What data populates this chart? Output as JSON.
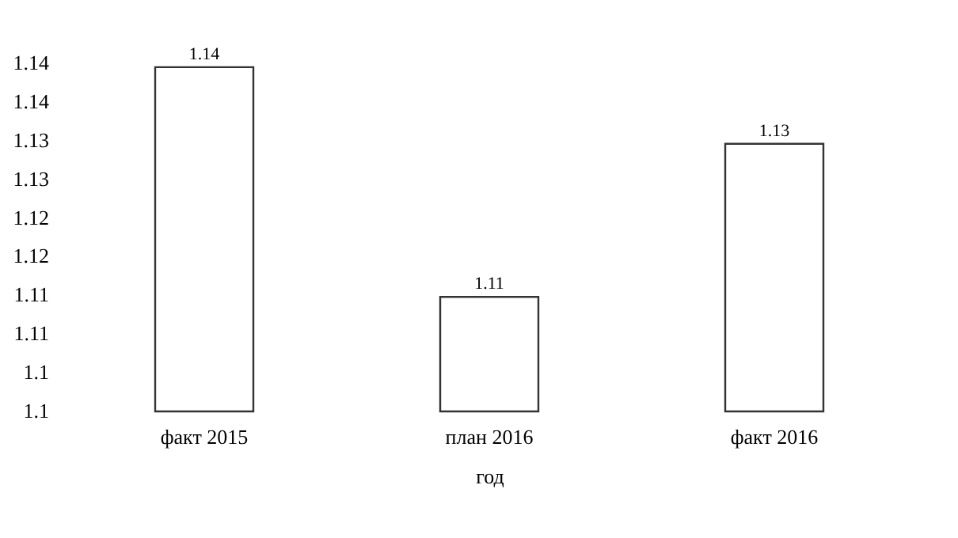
{
  "chart_data": {
    "type": "bar",
    "xlabel": "год",
    "categories": [
      "факт 2015",
      "план 2016",
      "факт 2016"
    ],
    "values": [
      1.1445,
      1.1148,
      1.1346
    ],
    "value_labels": [
      "1.14",
      "1.11",
      "1.13"
    ],
    "color": "#ffffff",
    "ylim": [
      1.1,
      1.145
    ],
    "yticks": [
      {
        "value": 1.1,
        "label": "1.1"
      },
      {
        "value": 1.105,
        "label": "1.1"
      },
      {
        "value": 1.11,
        "label": "1.11"
      },
      {
        "value": 1.115,
        "label": "1.11"
      },
      {
        "value": 1.12,
        "label": "1.12"
      },
      {
        "value": 1.125,
        "label": "1.12"
      },
      {
        "value": 1.13,
        "label": "1.13"
      },
      {
        "value": 1.135,
        "label": "1.13"
      },
      {
        "value": 1.14,
        "label": "1.14"
      },
      {
        "value": 1.145,
        "label": "1.14"
      }
    ],
    "grid": false
  }
}
